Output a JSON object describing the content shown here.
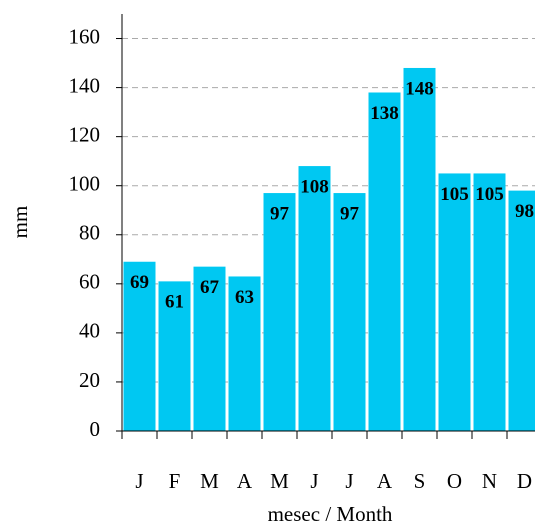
{
  "chart_data": {
    "type": "bar",
    "categories": [
      "J",
      "F",
      "M",
      "A",
      "M",
      "J",
      "J",
      "A",
      "S",
      "O",
      "N",
      "D"
    ],
    "values": [
      69,
      61,
      67,
      63,
      97,
      108,
      97,
      138,
      148,
      105,
      105,
      98
    ],
    "color": "#00c8f2",
    "x_label": "mesec / Month",
    "y_label": "mm",
    "ylim": [
      0,
      170
    ],
    "yticks": [
      0,
      20,
      40,
      60,
      80,
      100,
      120,
      140,
      160
    ],
    "grid": true
  }
}
